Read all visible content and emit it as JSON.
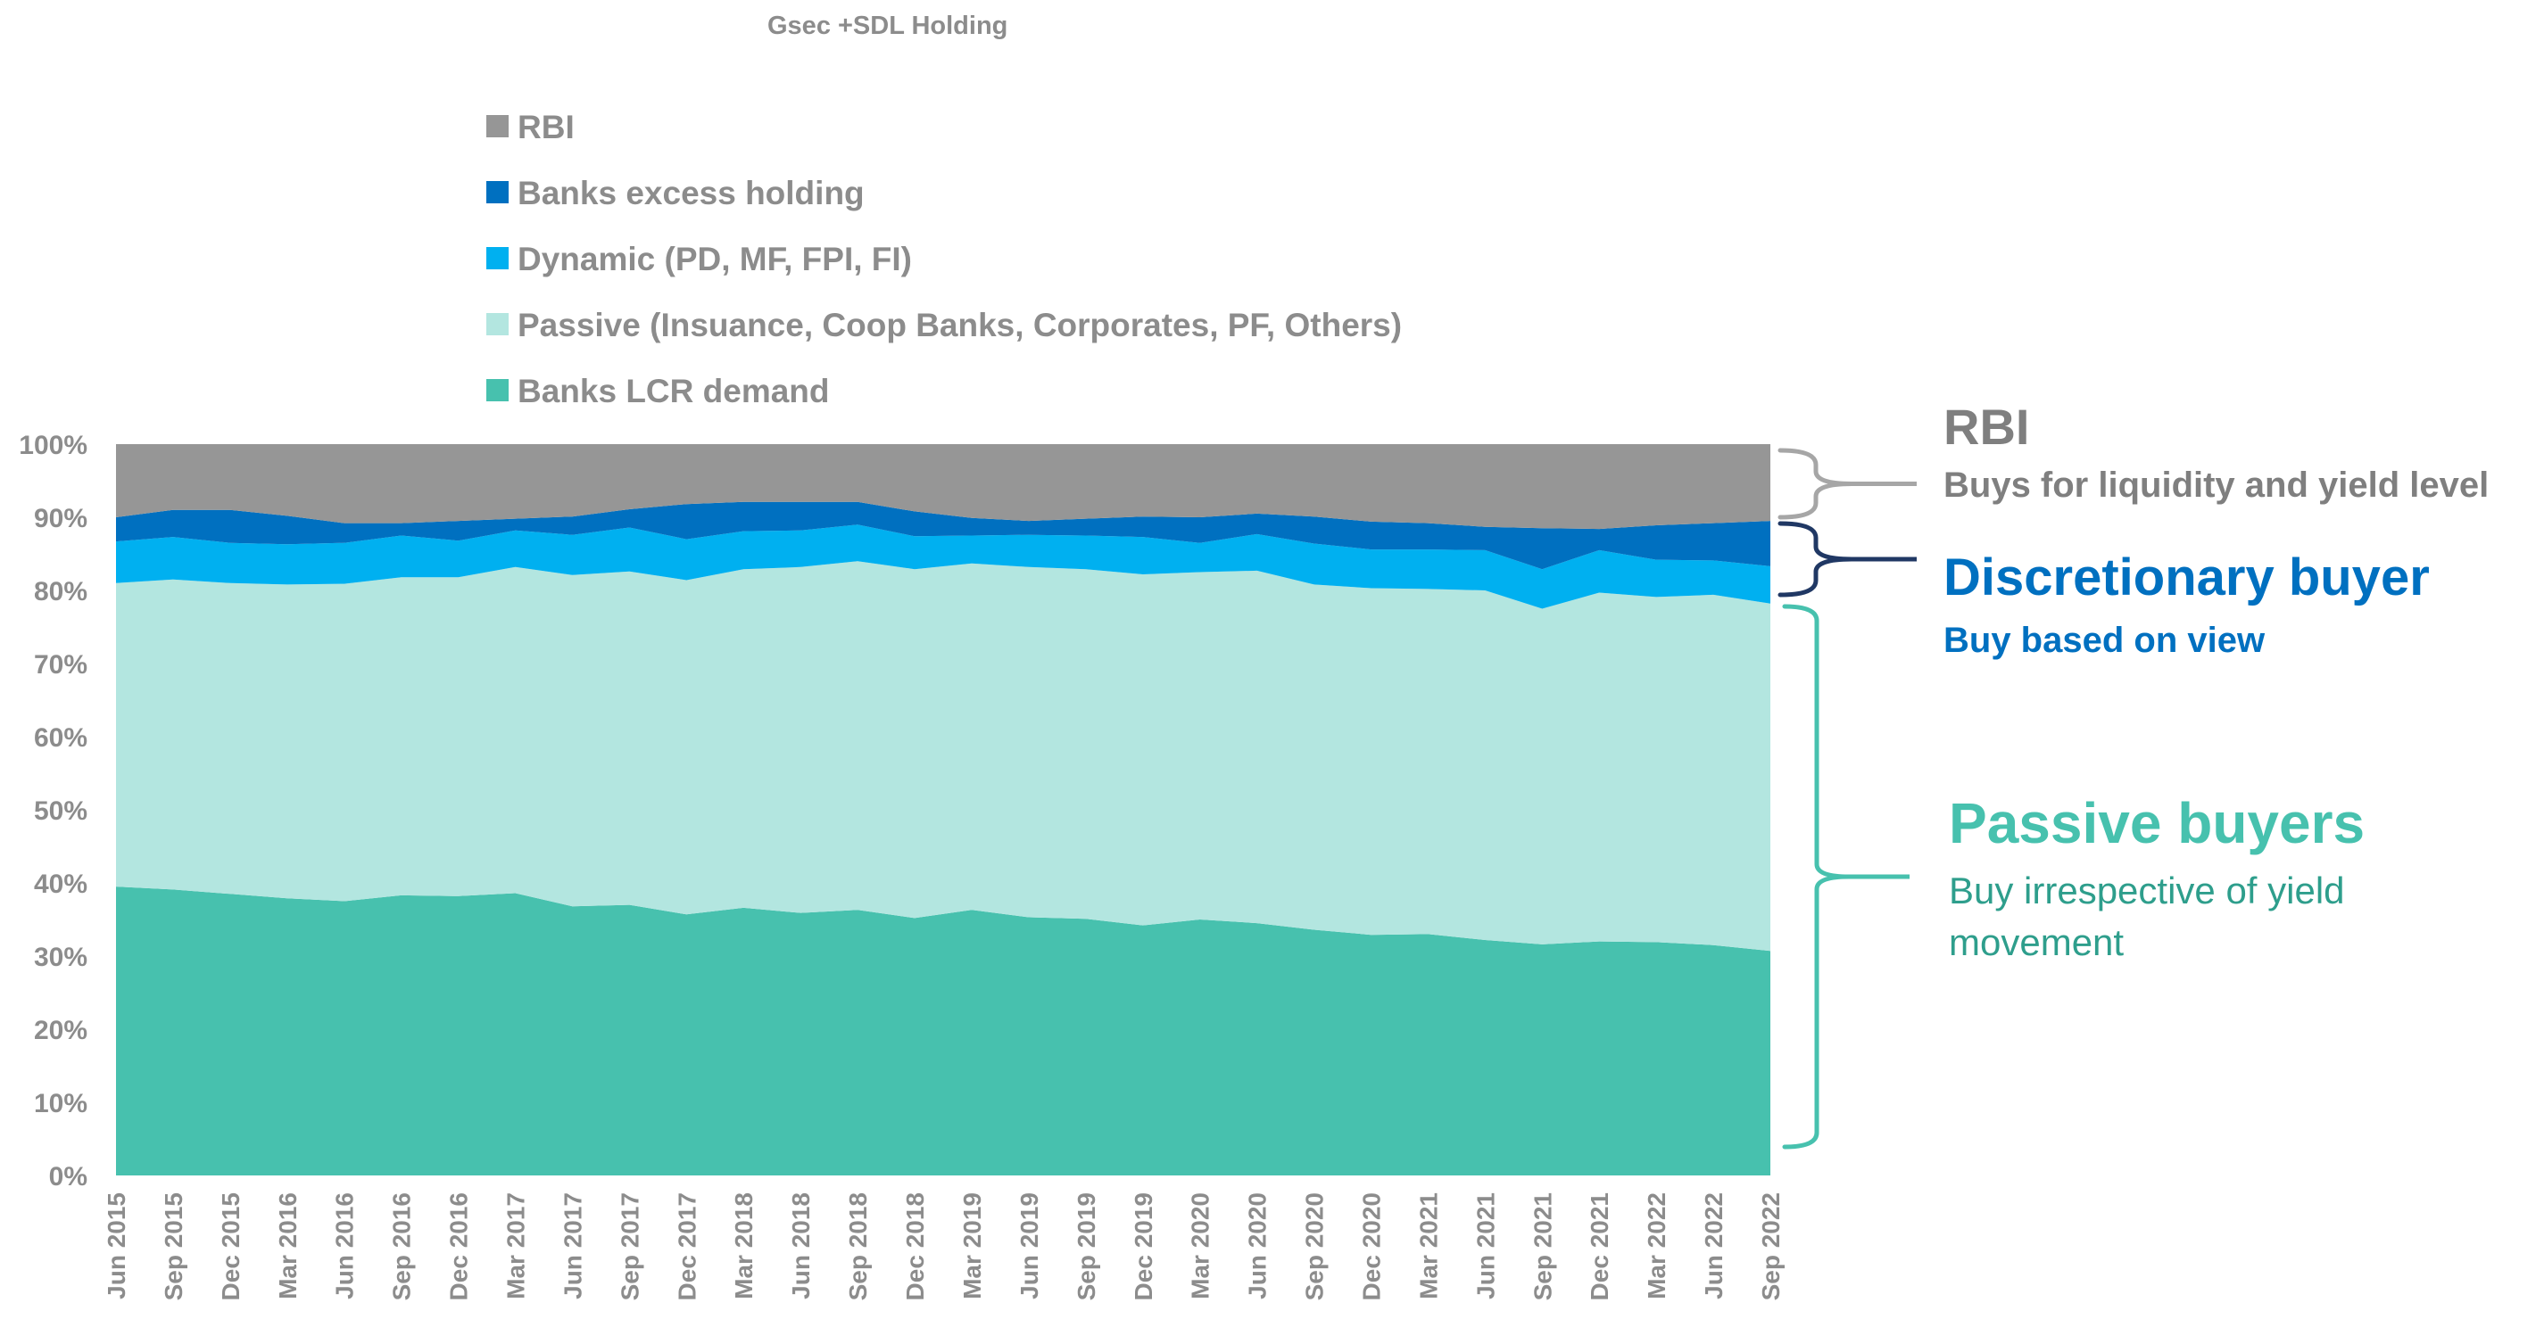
{
  "chart_data": {
    "type": "area",
    "stacked": true,
    "title": "Gsec +SDL Holding",
    "ylim": [
      0,
      100
    ],
    "y_ticks": [
      "0%",
      "10%",
      "20%",
      "30%",
      "40%",
      "50%",
      "60%",
      "70%",
      "80%",
      "90%",
      "100%"
    ],
    "x": [
      "Jun 2015",
      "Sep 2015",
      "Dec 2015",
      "Mar 2016",
      "Jun 2016",
      "Sep 2016",
      "Dec 2016",
      "Mar 2017",
      "Jun 2017",
      "Sep 2017",
      "Dec 2017",
      "Mar 2018",
      "Jun 2018",
      "Sep 2018",
      "Dec 2018",
      "Mar 2019",
      "Jun 2019",
      "Sep 2019",
      "Dec 2019",
      "Mar 2020",
      "Jun 2020",
      "Sep 2020",
      "Dec 2020",
      "Mar 2021",
      "Jun 2021",
      "Sep 2021",
      "Dec 2021",
      "Mar 2022",
      "Jun 2022",
      "Sep 2022"
    ],
    "legend_position": "top-left",
    "series": [
      {
        "name": "Banks LCR demand",
        "color": "#47c1ae",
        "values": [
          39.5,
          39.1,
          38.5,
          37.9,
          37.5,
          38.3,
          38.2,
          38.6,
          36.8,
          37.0,
          35.7,
          36.6,
          35.9,
          36.3,
          35.2,
          36.3,
          35.3,
          35.1,
          34.2,
          35.0,
          34.5,
          33.6,
          32.9,
          33.0,
          32.2,
          31.6,
          32.0,
          31.9,
          31.5,
          30.7
        ]
      },
      {
        "name": "Passive (Insuance, Coop Banks, Corporates, PF, Others)",
        "color": "#b3e6e0",
        "values": [
          41.5,
          42.4,
          42.5,
          42.9,
          43.4,
          43.5,
          43.6,
          44.6,
          45.3,
          45.6,
          45.7,
          46.3,
          47.3,
          47.7,
          47.7,
          47.4,
          47.9,
          47.8,
          48.0,
          47.5,
          48.2,
          47.2,
          47.4,
          47.2,
          47.8,
          45.9,
          47.7,
          47.2,
          47.9,
          47.5
        ]
      },
      {
        "name": "Dynamic (PD, MF, FPI, FI)",
        "color": "#00b0f0",
        "values": [
          5.7,
          5.8,
          5.5,
          5.5,
          5.6,
          5.7,
          5.0,
          5.0,
          5.5,
          6.0,
          5.6,
          5.2,
          5.0,
          5.0,
          4.5,
          3.8,
          4.4,
          4.6,
          5.1,
          4.0,
          5.0,
          5.6,
          5.3,
          5.4,
          5.5,
          5.4,
          5.8,
          5.1,
          4.7,
          5.1
        ]
      },
      {
        "name": "Banks excess holding",
        "color": "#0070c0",
        "values": [
          3.3,
          3.7,
          4.5,
          3.9,
          2.7,
          1.7,
          2.7,
          1.6,
          2.5,
          2.5,
          4.8,
          4.0,
          3.9,
          3.1,
          3.4,
          2.4,
          1.9,
          2.3,
          2.8,
          3.5,
          2.8,
          3.7,
          3.8,
          3.6,
          3.2,
          5.6,
          2.9,
          4.7,
          5.1,
          6.2
        ]
      },
      {
        "name": "RBI",
        "color": "#969696",
        "values": [
          10.0,
          9.0,
          9.0,
          9.8,
          10.8,
          10.8,
          10.5,
          10.2,
          9.9,
          8.9,
          8.2,
          7.9,
          7.9,
          7.9,
          9.2,
          10.1,
          10.5,
          10.2,
          9.9,
          10.0,
          9.5,
          9.9,
          10.6,
          10.8,
          11.3,
          11.5,
          11.6,
          11.1,
          10.8,
          10.5
        ]
      }
    ]
  },
  "annotations": {
    "rbi": {
      "title": "RBI",
      "subtitle": "Buys for liquidity and yield level",
      "title_color": "#7f7f7f",
      "subtitle_color": "#7f7f7f",
      "brace_color": "#a6a6a6"
    },
    "discretionary": {
      "title": "Discretionary buyer",
      "subtitle": "Buy based on view",
      "title_color": "#0070c0",
      "subtitle_color": "#0070c0",
      "brace_color": "#203864"
    },
    "passive": {
      "title": "Passive buyers",
      "subtitle_line1": "Buy irrespective of yield",
      "subtitle_line2": "movement",
      "title_color": "#47c1ae",
      "subtitle_color": "#2e9e8c",
      "brace_color": "#47c1ae"
    }
  }
}
